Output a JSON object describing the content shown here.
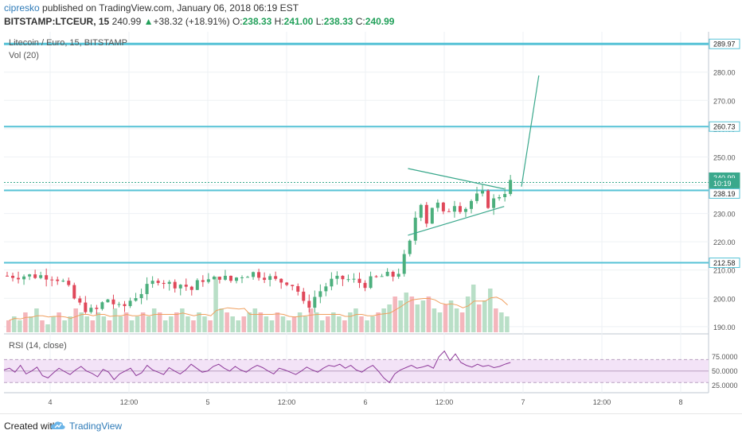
{
  "header": {
    "author": "cipresko",
    "published_text": "published on TradingView.com, January 06, 2018 06:19 EST",
    "symbol": "BITSTAMP:LTCEUR, 15",
    "last": "240.99",
    "arrow": "▲",
    "change": "+38.32 (+18.91%)",
    "o_label": "O:",
    "o_value": "238.33",
    "h_label": "H:",
    "h_value": "241.00",
    "l_label": "L:",
    "l_value": "238.33",
    "c_label": "C:",
    "c_value": "240.99"
  },
  "legend": {
    "title": "Litecoin / Euro, 15, BITSTAMP",
    "volume": "Vol (20)",
    "rsi": "RSI (14, close)"
  },
  "footer": {
    "created_with": "Created with",
    "brand": "TradingView"
  },
  "colors": {
    "up": "#4caf7d",
    "down": "#e0485a",
    "level_line": "#56c2d6",
    "drawing": "#3aa88c",
    "rsi_line": "#8e3a9a",
    "rsi_band": "#f3e3f7",
    "vol_ma": "#f0a060"
  },
  "chart_data": [
    {
      "type": "candlestick",
      "title": "Litecoin / Euro, 15, BITSTAMP",
      "ylim": [
        188,
        292
      ],
      "y_ticks": [
        "200.00",
        "210.00",
        "220.00",
        "230.00",
        "240.00",
        "250.00",
        "260.00",
        "270.00",
        "280.00",
        "190.00"
      ],
      "x_ticks": [
        "4",
        "12:00",
        "5",
        "12:00",
        "6",
        "12:00",
        "7",
        "12:00",
        "8"
      ],
      "price_labels": [
        {
          "text": "289.97",
          "value": 289.97
        },
        {
          "text": "260.73",
          "value": 260.73
        },
        {
          "text": "240.99",
          "value": 240.99
        },
        {
          "text": "10:19",
          "value": 237.6
        },
        {
          "text": "238.19",
          "value": 238.19
        },
        {
          "text": "212.58",
          "value": 212.58
        }
      ],
      "horizontal_levels": [
        289.97,
        260.73,
        238.19,
        212.58
      ],
      "last_price": 240.99,
      "price_path": [
        [
          0,
          208
        ],
        [
          0.05,
          207
        ],
        [
          0.1,
          205
        ],
        [
          0.15,
          200
        ],
        [
          0.2,
          197
        ],
        [
          0.28,
          195
        ],
        [
          0.36,
          200
        ],
        [
          0.45,
          196
        ],
        [
          0.52,
          200
        ],
        [
          0.6,
          203
        ],
        [
          0.68,
          207
        ],
        [
          0.76,
          205
        ],
        [
          0.84,
          205
        ],
        [
          0.9,
          203
        ],
        [
          0.96,
          207
        ],
        [
          1.02,
          206
        ],
        [
          1.08,
          208
        ],
        [
          1.14,
          206
        ],
        [
          1.2,
          208
        ],
        [
          1.28,
          209
        ],
        [
          1.36,
          208
        ],
        [
          1.44,
          206
        ],
        [
          1.52,
          206
        ],
        [
          1.58,
          202
        ],
        [
          1.62,
          196
        ],
        [
          1.67,
          200
        ],
        [
          1.72,
          203
        ],
        [
          1.78,
          206
        ],
        [
          1.86,
          207
        ],
        [
          1.94,
          206
        ],
        [
          2.0,
          205
        ],
        [
          2.05,
          207
        ],
        [
          2.12,
          208
        ],
        [
          2.2,
          208
        ],
        [
          2.3,
          222
        ],
        [
          2.34,
          238
        ],
        [
          2.38,
          226
        ],
        [
          2.44,
          235
        ],
        [
          2.5,
          229
        ],
        [
          2.56,
          234
        ],
        [
          2.62,
          231
        ],
        [
          2.68,
          235
        ],
        [
          2.74,
          237
        ],
        [
          2.78,
          233
        ],
        [
          2.82,
          235
        ],
        [
          2.86,
          237
        ],
        [
          2.9,
          238.5
        ],
        [
          2.92,
          240.99
        ]
      ],
      "drawings": {
        "triangle_upper": [
          [
            2.27,
            245.9
          ],
          [
            2.88,
            238.7
          ]
        ],
        "triangle_lower": [
          [
            2.27,
            222.3
          ],
          [
            2.88,
            232.5
          ]
        ],
        "projection": [
          [
            2.99,
            239.5
          ],
          [
            3.1,
            278.8
          ]
        ]
      }
    },
    {
      "type": "bar",
      "title": "Vol (20)",
      "values": [
        3,
        4,
        3,
        5,
        4,
        6,
        3,
        2,
        4,
        5,
        3,
        4,
        6,
        5,
        4,
        3,
        5,
        4,
        3,
        6,
        4,
        5,
        3,
        4,
        5,
        4,
        6,
        5,
        3,
        4,
        5,
        6,
        4,
        3,
        5,
        4,
        3,
        14,
        6,
        5,
        4,
        3,
        4,
        5,
        6,
        5,
        4,
        3,
        5,
        4,
        3,
        4,
        5,
        4,
        6,
        5,
        3,
        4,
        5,
        4,
        3,
        5,
        6,
        4,
        3,
        4,
        5,
        6,
        7,
        9,
        8,
        10,
        9,
        7,
        8,
        9,
        6,
        5,
        7,
        8,
        6,
        5,
        9,
        12,
        7,
        8,
        11,
        6,
        5,
        4
      ]
    },
    {
      "type": "line",
      "title": "RSI (14, close)",
      "ylim": [
        15,
        90
      ],
      "y_ticks": [
        "75.0000",
        "50.0000",
        "25.0000"
      ],
      "band": [
        30,
        70
      ],
      "values": [
        52,
        55,
        48,
        60,
        45,
        50,
        57,
        42,
        38,
        47,
        55,
        49,
        44,
        52,
        58,
        50,
        46,
        40,
        53,
        48,
        35,
        45,
        50,
        55,
        42,
        47,
        60,
        52,
        48,
        44,
        56,
        50,
        45,
        52,
        62,
        55,
        48,
        50,
        58,
        62,
        55,
        50,
        58,
        52,
        48,
        55,
        60,
        56,
        50,
        45,
        55,
        52,
        48,
        44,
        50,
        57,
        52,
        48,
        55,
        60,
        58,
        62,
        55,
        60,
        52,
        48,
        55,
        60,
        50,
        38,
        30,
        45,
        52,
        56,
        60,
        55,
        57,
        60,
        55,
        75,
        85,
        68,
        80,
        65,
        60,
        57,
        62,
        58,
        60,
        56,
        58,
        62,
        65
      ]
    }
  ]
}
